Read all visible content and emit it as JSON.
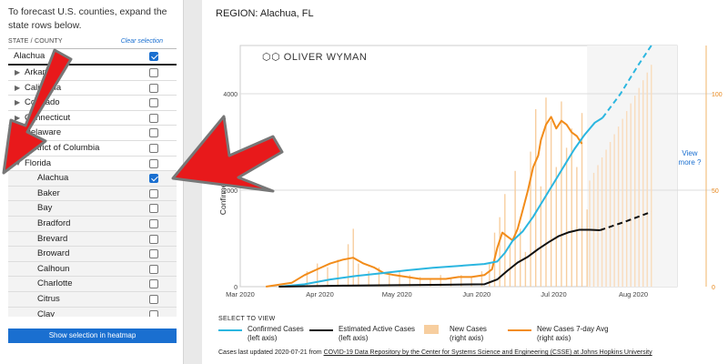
{
  "sidebar": {
    "intro": "To forecast U.S. counties, expand the state rows below.",
    "column_header": "STATE / COUNTY",
    "clear_label": "Clear selection",
    "rows": [
      {
        "label": "Alachua",
        "type": "selected",
        "checked": true
      },
      {
        "label": "Arkansas",
        "type": "state",
        "checked": false
      },
      {
        "label": "California",
        "type": "state",
        "checked": false
      },
      {
        "label": "Colorado",
        "type": "state",
        "checked": false
      },
      {
        "label": "Connecticut",
        "type": "state",
        "checked": false
      },
      {
        "label": "Delaware",
        "type": "state",
        "checked": false
      },
      {
        "label": "District of Columbia",
        "type": "state",
        "checked": false
      },
      {
        "label": "Florida",
        "type": "state-open",
        "checked": false
      },
      {
        "label": "Alachua",
        "type": "county",
        "checked": true
      },
      {
        "label": "Baker",
        "type": "county",
        "checked": false
      },
      {
        "label": "Bay",
        "type": "county",
        "checked": false
      },
      {
        "label": "Bradford",
        "type": "county",
        "checked": false
      },
      {
        "label": "Brevard",
        "type": "county",
        "checked": false
      },
      {
        "label": "Broward",
        "type": "county",
        "checked": false
      },
      {
        "label": "Calhoun",
        "type": "county",
        "checked": false
      },
      {
        "label": "Charlotte",
        "type": "county",
        "checked": false
      },
      {
        "label": "Citrus",
        "type": "county",
        "checked": false
      },
      {
        "label": "Clay",
        "type": "county",
        "checked": false
      }
    ],
    "show_button": "Show selection in heatmap"
  },
  "main": {
    "region": "REGION: Alachua, FL",
    "logo_text": "OLIVER WYMAN",
    "view_more": "View more ?",
    "legend_title": "SELECT TO VIEW",
    "legend": [
      {
        "label": "Confirmed Cases",
        "sub": "(left axis)",
        "color": "#2bb6e0",
        "kind": "line"
      },
      {
        "label": "Estimated Active Cases",
        "sub": "(left axis)",
        "color": "#111111",
        "kind": "line"
      },
      {
        "label": "New Cases",
        "sub": "(right axis)",
        "color": "#f7ce9f",
        "kind": "box"
      },
      {
        "label": "New Cases 7-day Avg",
        "sub": "(right axis)",
        "color": "#f28c1a",
        "kind": "line"
      }
    ],
    "updated_prefix": "Cases last updated 2020-07-21 from ",
    "updated_link": "COVID-19 Data Repository by the Center for Systems Science and Engineering (CSSE) at Johns Hopkins University"
  },
  "colors": {
    "accent": "#1a6fd0",
    "confirmed": "#2bb6e0",
    "active": "#111111",
    "new_cases": "#f7ce9f",
    "avg": "#f28c1a",
    "arrow": "#e8191b"
  },
  "chart_data": {
    "type": "line",
    "ylabel": "Confirmed and Active Cases",
    "x_ticks": [
      "Mar 2020",
      "Apr 2020",
      "May 2020",
      "Jun 2020",
      "Jul 2020",
      "Aug 2020"
    ],
    "left_ticks": [
      "0",
      "2000",
      "4000"
    ],
    "right_ticks": [
      "0",
      "50",
      "100"
    ],
    "left_ylim": [
      0,
      5000
    ],
    "right_ylim": [
      0,
      125
    ],
    "x_range_days": [
      0,
      170
    ],
    "series": [
      {
        "name": "Confirmed Cases",
        "axis": "left",
        "points": [
          [
            15,
            0
          ],
          [
            25,
            50
          ],
          [
            35,
            150
          ],
          [
            45,
            220
          ],
          [
            55,
            280
          ],
          [
            65,
            340
          ],
          [
            75,
            390
          ],
          [
            85,
            430
          ],
          [
            95,
            470
          ],
          [
            100,
            520
          ],
          [
            103,
            700
          ],
          [
            106,
            950
          ],
          [
            110,
            1150
          ],
          [
            114,
            1450
          ],
          [
            118,
            1800
          ],
          [
            122,
            2150
          ],
          [
            126,
            2500
          ],
          [
            130,
            2850
          ],
          [
            134,
            3150
          ],
          [
            138,
            3400
          ],
          [
            141,
            3500
          ]
        ],
        "forecast": [
          [
            141,
            3500
          ],
          [
            148,
            4000
          ],
          [
            155,
            4600
          ],
          [
            160,
            5000
          ]
        ]
      },
      {
        "name": "Estimated Active Cases",
        "axis": "left",
        "points": [
          [
            15,
            0
          ],
          [
            40,
            20
          ],
          [
            60,
            30
          ],
          [
            80,
            40
          ],
          [
            95,
            50
          ],
          [
            100,
            150
          ],
          [
            104,
            330
          ],
          [
            108,
            500
          ],
          [
            112,
            620
          ],
          [
            116,
            780
          ],
          [
            120,
            920
          ],
          [
            124,
            1050
          ],
          [
            128,
            1130
          ],
          [
            132,
            1180
          ],
          [
            136,
            1180
          ],
          [
            140,
            1170
          ]
        ],
        "forecast": [
          [
            140,
            1170
          ],
          [
            150,
            1350
          ],
          [
            160,
            1550
          ]
        ]
      },
      {
        "name": "New Cases 7-day Avg",
        "axis": "right",
        "points": [
          [
            10,
            0
          ],
          [
            20,
            2
          ],
          [
            25,
            6
          ],
          [
            30,
            9
          ],
          [
            35,
            12
          ],
          [
            40,
            14
          ],
          [
            44,
            15
          ],
          [
            48,
            12
          ],
          [
            52,
            10
          ],
          [
            56,
            7
          ],
          [
            60,
            6
          ],
          [
            65,
            5
          ],
          [
            70,
            4
          ],
          [
            75,
            4
          ],
          [
            80,
            4
          ],
          [
            85,
            5
          ],
          [
            90,
            5
          ],
          [
            95,
            6
          ],
          [
            98,
            9
          ],
          [
            100,
            20
          ],
          [
            102,
            28
          ],
          [
            104,
            26
          ],
          [
            106,
            24
          ],
          [
            108,
            30
          ],
          [
            110,
            40
          ],
          [
            112,
            50
          ],
          [
            114,
            62
          ],
          [
            116,
            68
          ],
          [
            117,
            76
          ],
          [
            119,
            84
          ],
          [
            121,
            88
          ],
          [
            123,
            82
          ],
          [
            125,
            86
          ],
          [
            127,
            84
          ],
          [
            129,
            80
          ],
          [
            131,
            78
          ],
          [
            133,
            74
          ]
        ]
      },
      {
        "name": "New Cases",
        "axis": "right",
        "points": [
          [
            26,
            8
          ],
          [
            30,
            12
          ],
          [
            34,
            10
          ],
          [
            38,
            14
          ],
          [
            42,
            22
          ],
          [
            44,
            30
          ],
          [
            46,
            12
          ],
          [
            50,
            8
          ],
          [
            54,
            10
          ],
          [
            58,
            6
          ],
          [
            62,
            8
          ],
          [
            66,
            6
          ],
          [
            70,
            5
          ],
          [
            74,
            4
          ],
          [
            78,
            6
          ],
          [
            82,
            4
          ],
          [
            86,
            6
          ],
          [
            90,
            5
          ],
          [
            94,
            8
          ],
          [
            97,
            12
          ],
          [
            99,
            28
          ],
          [
            101,
            36
          ],
          [
            103,
            48
          ],
          [
            105,
            22
          ],
          [
            107,
            60
          ],
          [
            109,
            30
          ],
          [
            111,
            18
          ],
          [
            113,
            70
          ],
          [
            115,
            92
          ],
          [
            117,
            52
          ],
          [
            119,
            98
          ],
          [
            121,
            86
          ],
          [
            123,
            62
          ],
          [
            125,
            96
          ],
          [
            127,
            72
          ],
          [
            129,
            82
          ],
          [
            131,
            62
          ],
          [
            133,
            90
          ],
          [
            135,
            40
          ]
        ]
      }
    ]
  }
}
